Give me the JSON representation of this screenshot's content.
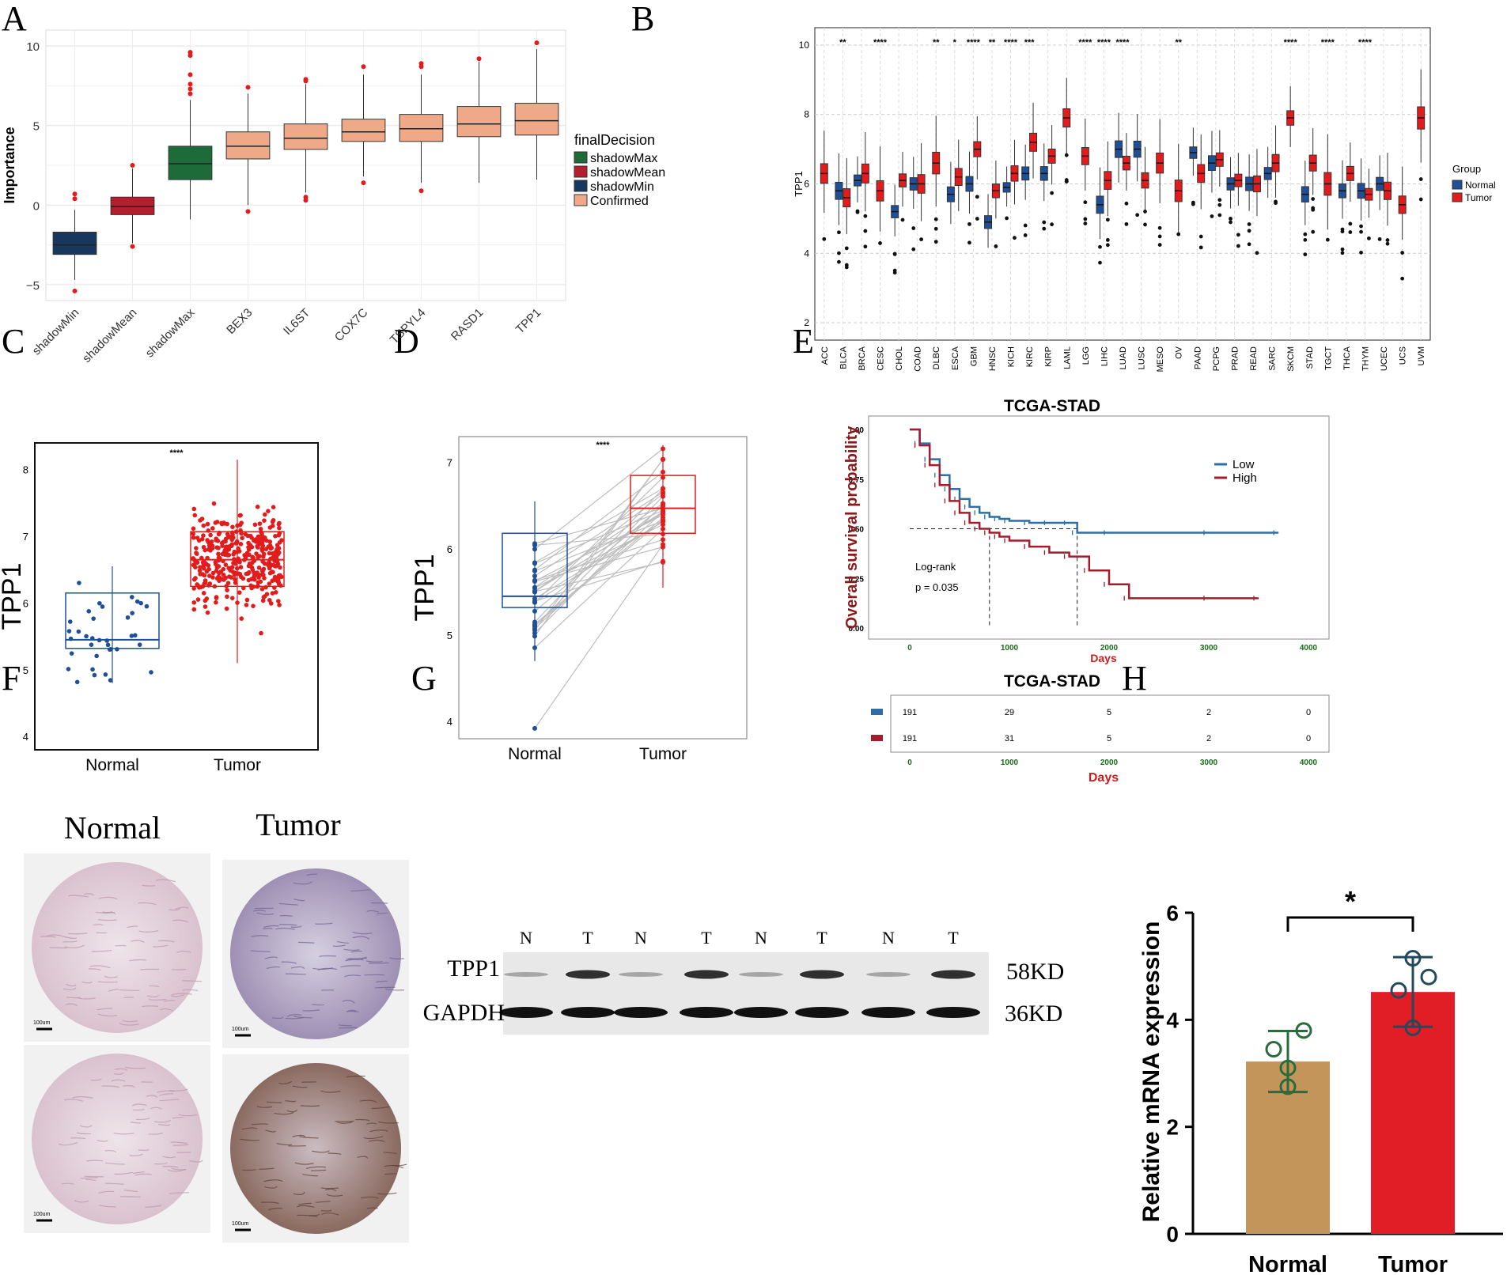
{
  "panel_letters": {
    "a": "A",
    "b": "B",
    "c": "C",
    "d": "D",
    "e": "E",
    "f": "F",
    "g": "G",
    "h": "H"
  },
  "colors": {
    "shadowMin": "#17375e",
    "shadowMean": "#b41f2e",
    "shadowMax": "#1e6b3a",
    "confirmed": "#f0a988",
    "normal_blue": "#1f4f96",
    "tumor_red": "#e21c1c",
    "low": "#2d6ea8",
    "high": "#a51d2d",
    "bar_normal": "#c4955a",
    "bar_tumor": "#e11e26",
    "dot_green": "#2a6b3c"
  },
  "chart_data": [
    {
      "id": "A",
      "type": "box",
      "title": "",
      "ylabel": "Importance",
      "ylim": [
        -6,
        11
      ],
      "yticks": [
        -5,
        0,
        5,
        10
      ],
      "legend_title": "finalDecision",
      "legend": [
        "shadowMax",
        "shadowMean",
        "shadowMin",
        "Confirmed"
      ],
      "categories": [
        "shadowMin",
        "shadowMean",
        "shadowMax",
        "BEX3",
        "IL6ST",
        "COX7C",
        "TSPYL4",
        "RASD1",
        "TPP1"
      ],
      "groups": [
        "shadowMin",
        "shadowMean",
        "shadowMax",
        "Confirmed",
        "Confirmed",
        "Confirmed",
        "Confirmed",
        "Confirmed",
        "Confirmed"
      ],
      "boxes": [
        {
          "min": -4.7,
          "q1": -3.1,
          "median": -2.5,
          "q3": -1.7,
          "max": -0.3,
          "outliers": [
            -5.4,
            0.4,
            0.7
          ]
        },
        {
          "min": -2.4,
          "q1": -0.6,
          "median": -0.1,
          "q3": 0.5,
          "max": 2.3,
          "outliers": [
            -2.6,
            2.5
          ]
        },
        {
          "min": -0.9,
          "q1": 1.6,
          "median": 2.6,
          "q3": 3.7,
          "max": 6.6,
          "outliers": [
            7.0,
            7.3,
            7.6,
            8.2,
            9.4,
            9.6
          ]
        },
        {
          "min": 0.0,
          "q1": 2.9,
          "median": 3.7,
          "q3": 4.6,
          "max": 7.0,
          "outliers": [
            -0.4,
            7.4
          ]
        },
        {
          "min": 0.8,
          "q1": 3.5,
          "median": 4.2,
          "q3": 5.1,
          "max": 7.6,
          "outliers": [
            0.3,
            0.5,
            7.8,
            7.9
          ]
        },
        {
          "min": 1.8,
          "q1": 4.0,
          "median": 4.6,
          "q3": 5.4,
          "max": 8.2,
          "outliers": [
            1.4,
            8.7
          ]
        },
        {
          "min": 1.4,
          "q1": 4.0,
          "median": 4.8,
          "q3": 5.7,
          "max": 8.2,
          "outliers": [
            0.9,
            8.7,
            8.9
          ]
        },
        {
          "min": 1.4,
          "q1": 4.3,
          "median": 5.1,
          "q3": 6.2,
          "max": 9.0,
          "outliers": [
            9.2
          ]
        },
        {
          "min": 1.6,
          "q1": 4.4,
          "median": 5.3,
          "q3": 6.4,
          "max": 9.8,
          "outliers": [
            10.2
          ]
        }
      ]
    },
    {
      "id": "B",
      "type": "box",
      "ylabel": "TPP1",
      "ylim": [
        1.5,
        10.5
      ],
      "yticks": [
        2,
        4,
        6,
        8,
        10
      ],
      "legend_title": "Group",
      "legend": [
        "Normal",
        "Tumor"
      ],
      "categories": [
        "ACC",
        "BLCA",
        "BRCA",
        "CESC",
        "CHOL",
        "COAD",
        "DLBC",
        "ESCA",
        "GBM",
        "HNSC",
        "KICH",
        "KIRC",
        "KIRP",
        "LAML",
        "LGG",
        "LIHC",
        "LUAD",
        "LUSC",
        "MESO",
        "OV",
        "PAAD",
        "PCPG",
        "PRAD",
        "READ",
        "SARC",
        "SKCM",
        "STAD",
        "TGCT",
        "THCA",
        "THYM",
        "UCEC",
        "UCS",
        "UVM"
      ],
      "significance": [
        "",
        "**",
        "",
        "****",
        "",
        "",
        "**",
        "*",
        "****",
        "**",
        "****",
        "***",
        "",
        "",
        "****",
        "****",
        "****",
        "",
        "",
        "**",
        "",
        "",
        "",
        "",
        "",
        "****",
        "",
        "****",
        "",
        "****",
        "",
        "",
        ""
      ],
      "normal_median": [
        null,
        5.8,
        6.1,
        null,
        5.2,
        6.0,
        null,
        5.7,
        6.0,
        4.9,
        5.9,
        6.3,
        6.3,
        null,
        null,
        5.4,
        7.0,
        7.0,
        null,
        null,
        6.9,
        6.6,
        6.0,
        6.0,
        6.3,
        null,
        5.7,
        null,
        5.8,
        5.8,
        6.0,
        null,
        null
      ],
      "tumor_median": [
        6.3,
        5.6,
        6.3,
        5.8,
        6.1,
        6.0,
        6.6,
        6.2,
        7.0,
        5.8,
        6.3,
        7.2,
        6.8,
        7.9,
        6.8,
        6.1,
        6.6,
        6.1,
        6.6,
        5.8,
        6.3,
        6.7,
        6.1,
        6.0,
        6.6,
        7.9,
        6.6,
        6.0,
        6.3,
        5.7,
        5.8,
        5.4,
        7.9
      ]
    },
    {
      "id": "C",
      "type": "box_jitter",
      "ylabel": "TPP1",
      "ylim": [
        3.8,
        8.4
      ],
      "yticks": [
        4,
        5,
        6,
        7,
        8
      ],
      "categories": [
        "Normal",
        "Tumor"
      ],
      "significance": "****",
      "boxes": [
        {
          "min": 4.8,
          "q1": 5.32,
          "median": 5.45,
          "q3": 6.15,
          "max": 6.55,
          "n": 36
        },
        {
          "min": 5.1,
          "q1": 6.25,
          "median": 6.65,
          "q3": 7.07,
          "max": 8.15,
          "n": 375
        }
      ]
    },
    {
      "id": "D",
      "type": "paired_box",
      "ylabel": "TPP1",
      "ylim": [
        3.8,
        7.3
      ],
      "yticks": [
        4,
        5,
        6,
        7
      ],
      "categories": [
        "Normal",
        "Tumor"
      ],
      "significance": "****",
      "boxes": [
        {
          "min": 4.7,
          "q1": 5.32,
          "median": 5.45,
          "q3": 6.18,
          "max": 6.55
        },
        {
          "min": 5.55,
          "q1": 6.18,
          "median": 6.47,
          "q3": 6.85,
          "max": 7.2
        }
      ],
      "n_pairs": 32
    },
    {
      "id": "E",
      "type": "kaplan_meier",
      "title": "TCGA-STAD",
      "xlabel": "Days",
      "ylabel": "Overall survival probability",
      "xlim": [
        0,
        4000
      ],
      "ylim": [
        0,
        1
      ],
      "xticks": [
        0,
        1000,
        2000,
        3000,
        4000
      ],
      "yticks": [
        "0.00",
        "0.25",
        "0.50",
        "0.75",
        "1.00"
      ],
      "legend": [
        "Low",
        "High"
      ],
      "annotation_line1": "Log-rank",
      "annotation_line2": "p = 0.035",
      "series": [
        {
          "name": "Low",
          "x": [
            0,
            100,
            200,
            300,
            400,
            500,
            600,
            700,
            800,
            900,
            1000,
            1200,
            1400,
            1600,
            1680,
            2000,
            3000,
            3700
          ],
          "y": [
            1.0,
            0.93,
            0.85,
            0.77,
            0.7,
            0.65,
            0.61,
            0.58,
            0.56,
            0.55,
            0.54,
            0.53,
            0.53,
            0.53,
            0.48,
            0.48,
            0.48,
            0.48
          ]
        },
        {
          "name": "High",
          "x": [
            0,
            100,
            200,
            300,
            400,
            500,
            600,
            700,
            800,
            900,
            1000,
            1200,
            1400,
            1600,
            1800,
            2000,
            2200,
            3000,
            3500
          ],
          "y": [
            1.0,
            0.92,
            0.82,
            0.72,
            0.64,
            0.58,
            0.53,
            0.5,
            0.48,
            0.46,
            0.44,
            0.41,
            0.38,
            0.36,
            0.29,
            0.22,
            0.15,
            0.15,
            0.15
          ]
        }
      ],
      "risk_table": {
        "title": "TCGA-STAD",
        "xlabel": "Days",
        "rows": [
          {
            "name": "Low",
            "values": [
              "191",
              "29",
              "5",
              "2",
              "0"
            ]
          },
          {
            "name": "High",
            "values": [
              "191",
              "31",
              "5",
              "2",
              "0"
            ]
          }
        ]
      }
    },
    {
      "id": "H",
      "type": "bar",
      "ylabel": "Relative mRNA expression",
      "ylim": [
        0,
        6
      ],
      "yticks": [
        0,
        2,
        4,
        6
      ],
      "categories": [
        "Normal",
        "Tumor"
      ],
      "values": [
        3.22,
        4.52
      ],
      "errors": [
        0.57,
        0.65
      ],
      "points": [
        [
          2.75,
          3.45,
          3.8,
          3.1
        ],
        [
          3.85,
          4.55,
          4.8,
          5.15
        ]
      ],
      "significance": "*"
    }
  ],
  "panelF": {
    "normal_label": "Normal",
    "tumor_label": "Tumor",
    "scale_label": "100um"
  },
  "panelG": {
    "lanes": [
      "N",
      "T",
      "N",
      "T",
      "N",
      "T",
      "N",
      "T"
    ],
    "row1": "TPP1",
    "row2": "GAPDH",
    "size1": "58KD",
    "size2": "36KD"
  }
}
